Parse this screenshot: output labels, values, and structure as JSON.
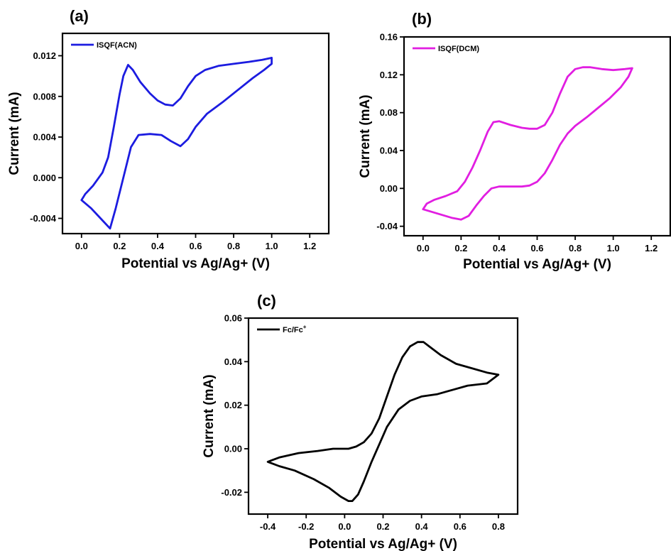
{
  "chart_data": [
    {
      "type": "line",
      "panel_label": "(a)",
      "xlabel": "Potential vs Ag/Ag+ (V)",
      "ylabel": "Current (mA)",
      "xlim": [
        -0.1,
        1.3
      ],
      "ylim": [
        -0.0055,
        0.0142
      ],
      "xticks": [
        0.0,
        0.2,
        0.4,
        0.6,
        0.8,
        1.0,
        1.2
      ],
      "xtick_labels": [
        "0.0",
        "0.2",
        "0.4",
        "0.6",
        "0.8",
        "1.0",
        "1.2"
      ],
      "yticks": [
        -0.004,
        0.0,
        0.004,
        0.008,
        0.012
      ],
      "ytick_labels": [
        "-0.004",
        "0.000",
        "0.004",
        "0.008",
        "0.012"
      ],
      "legend_position": "top-left",
      "grid": false,
      "series": [
        {
          "name": "ISQF(ACN)",
          "color": "#1c1ce0",
          "points": [
            [
              0.0,
              -0.0022
            ],
            [
              0.05,
              -0.003
            ],
            [
              0.1,
              -0.004
            ],
            [
              0.15,
              -0.005
            ],
            [
              0.18,
              -0.003
            ],
            [
              0.22,
              0.0
            ],
            [
              0.26,
              0.003
            ],
            [
              0.3,
              0.0042
            ],
            [
              0.36,
              0.0043
            ],
            [
              0.42,
              0.0042
            ],
            [
              0.47,
              0.0036
            ],
            [
              0.52,
              0.0031
            ],
            [
              0.56,
              0.0038
            ],
            [
              0.6,
              0.005
            ],
            [
              0.66,
              0.0063
            ],
            [
              0.74,
              0.0074
            ],
            [
              0.82,
              0.0086
            ],
            [
              0.9,
              0.0098
            ],
            [
              0.96,
              0.0106
            ],
            [
              1.0,
              0.0112
            ],
            [
              1.0,
              0.0118
            ],
            [
              0.95,
              0.0116
            ],
            [
              0.88,
              0.0114
            ],
            [
              0.8,
              0.0112
            ],
            [
              0.72,
              0.011
            ],
            [
              0.65,
              0.0106
            ],
            [
              0.6,
              0.01
            ],
            [
              0.56,
              0.009
            ],
            [
              0.52,
              0.0078
            ],
            [
              0.48,
              0.0071
            ],
            [
              0.44,
              0.0072
            ],
            [
              0.4,
              0.0076
            ],
            [
              0.36,
              0.0083
            ],
            [
              0.31,
              0.0094
            ],
            [
              0.27,
              0.0106
            ],
            [
              0.245,
              0.0111
            ],
            [
              0.22,
              0.01
            ],
            [
              0.2,
              0.0082
            ],
            [
              0.17,
              0.005
            ],
            [
              0.14,
              0.002
            ],
            [
              0.11,
              0.0005
            ],
            [
              0.06,
              -0.0008
            ],
            [
              0.02,
              -0.0016
            ],
            [
              0.0,
              -0.0022
            ]
          ]
        }
      ]
    },
    {
      "type": "line",
      "panel_label": "(b)",
      "xlabel": "Potential vs Ag/Ag+ (V)",
      "ylabel": "Current (mA)",
      "xlim": [
        -0.1,
        1.3
      ],
      "ylim": [
        -0.05,
        0.16
      ],
      "xticks": [
        0.0,
        0.2,
        0.4,
        0.6,
        0.8,
        1.0,
        1.2
      ],
      "xtick_labels": [
        "0.0",
        "0.2",
        "0.4",
        "0.6",
        "0.8",
        "1.0",
        "1.2"
      ],
      "yticks": [
        -0.04,
        0.0,
        0.04,
        0.08,
        0.12,
        0.16
      ],
      "ytick_labels": [
        "-0.04",
        "0.00",
        "0.04",
        "0.08",
        "0.12",
        "0.16"
      ],
      "legend_position": "top-left",
      "grid": false,
      "series": [
        {
          "name": "ISQF(DCM)",
          "color": "#e11ee1",
          "points": [
            [
              0.0,
              -0.022
            ],
            [
              0.05,
              -0.025
            ],
            [
              0.1,
              -0.028
            ],
            [
              0.15,
              -0.031
            ],
            [
              0.2,
              -0.033
            ],
            [
              0.24,
              -0.029
            ],
            [
              0.28,
              -0.018
            ],
            [
              0.32,
              -0.008
            ],
            [
              0.36,
              0.0
            ],
            [
              0.4,
              0.002
            ],
            [
              0.46,
              0.002
            ],
            [
              0.52,
              0.002
            ],
            [
              0.56,
              0.003
            ],
            [
              0.6,
              0.007
            ],
            [
              0.64,
              0.016
            ],
            [
              0.68,
              0.03
            ],
            [
              0.72,
              0.046
            ],
            [
              0.76,
              0.058
            ],
            [
              0.8,
              0.066
            ],
            [
              0.86,
              0.075
            ],
            [
              0.92,
              0.085
            ],
            [
              0.98,
              0.095
            ],
            [
              1.04,
              0.107
            ],
            [
              1.08,
              0.118
            ],
            [
              1.1,
              0.127
            ],
            [
              1.06,
              0.126
            ],
            [
              1.0,
              0.125
            ],
            [
              0.94,
              0.126
            ],
            [
              0.88,
              0.128
            ],
            [
              0.84,
              0.128
            ],
            [
              0.8,
              0.126
            ],
            [
              0.76,
              0.118
            ],
            [
              0.72,
              0.1
            ],
            [
              0.68,
              0.08
            ],
            [
              0.64,
              0.067
            ],
            [
              0.6,
              0.063
            ],
            [
              0.56,
              0.063
            ],
            [
              0.52,
              0.064
            ],
            [
              0.46,
              0.067
            ],
            [
              0.4,
              0.071
            ],
            [
              0.37,
              0.07
            ],
            [
              0.34,
              0.06
            ],
            [
              0.3,
              0.04
            ],
            [
              0.26,
              0.022
            ],
            [
              0.22,
              0.007
            ],
            [
              0.18,
              -0.003
            ],
            [
              0.12,
              -0.008
            ],
            [
              0.06,
              -0.012
            ],
            [
              0.02,
              -0.016
            ],
            [
              0.0,
              -0.022
            ]
          ]
        }
      ]
    },
    {
      "type": "line",
      "panel_label": "(c)",
      "xlabel": "Potential vs Ag/Ag+ (V)",
      "ylabel": "Current (mA)",
      "xlim": [
        -0.5,
        0.9
      ],
      "ylim": [
        -0.03,
        0.06
      ],
      "xticks": [
        -0.4,
        -0.2,
        0.0,
        0.2,
        0.4,
        0.6,
        0.8
      ],
      "xtick_labels": [
        "-0.4",
        "-0.2",
        "0.0",
        "0.2",
        "0.4",
        "0.6",
        "0.8"
      ],
      "yticks": [
        -0.02,
        0.0,
        0.02,
        0.04,
        0.06
      ],
      "ytick_labels": [
        "-0.02",
        "0.00",
        "0.02",
        "0.04",
        "0.06"
      ],
      "legend_position": "top-left",
      "grid": false,
      "series": [
        {
          "name": "Fc/Fc",
          "name_superscript": "+",
          "color": "#000000",
          "points": [
            [
              0.02,
              0.0
            ],
            [
              0.06,
              0.001
            ],
            [
              0.1,
              0.003
            ],
            [
              0.14,
              0.007
            ],
            [
              0.18,
              0.014
            ],
            [
              0.22,
              0.024
            ],
            [
              0.26,
              0.034
            ],
            [
              0.3,
              0.042
            ],
            [
              0.34,
              0.047
            ],
            [
              0.38,
              0.049
            ],
            [
              0.41,
              0.049
            ],
            [
              0.44,
              0.047
            ],
            [
              0.5,
              0.043
            ],
            [
              0.58,
              0.039
            ],
            [
              0.66,
              0.037
            ],
            [
              0.74,
              0.035
            ],
            [
              0.8,
              0.034
            ],
            [
              0.74,
              0.03
            ],
            [
              0.64,
              0.029
            ],
            [
              0.56,
              0.027
            ],
            [
              0.48,
              0.025
            ],
            [
              0.4,
              0.024
            ],
            [
              0.34,
              0.022
            ],
            [
              0.28,
              0.018
            ],
            [
              0.22,
              0.01
            ],
            [
              0.18,
              0.002
            ],
            [
              0.14,
              -0.006
            ],
            [
              0.1,
              -0.015
            ],
            [
              0.07,
              -0.021
            ],
            [
              0.04,
              -0.024
            ],
            [
              0.02,
              -0.024
            ],
            [
              -0.02,
              -0.022
            ],
            [
              -0.08,
              -0.018
            ],
            [
              -0.16,
              -0.014
            ],
            [
              -0.26,
              -0.01
            ],
            [
              -0.34,
              -0.008
            ],
            [
              -0.4,
              -0.006
            ],
            [
              -0.34,
              -0.004
            ],
            [
              -0.24,
              -0.002
            ],
            [
              -0.14,
              -0.001
            ],
            [
              -0.06,
              0.0
            ],
            [
              0.0,
              0.0
            ],
            [
              0.02,
              0.0
            ]
          ]
        }
      ]
    }
  ]
}
